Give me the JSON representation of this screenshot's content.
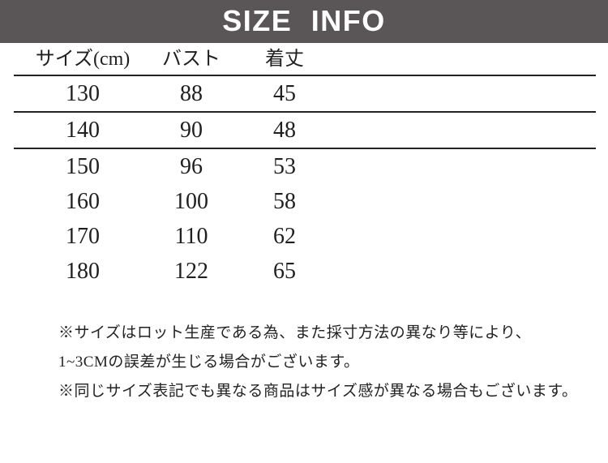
{
  "header": {
    "title": "SIZE INFO",
    "bg_color": "#5a5556",
    "text_color": "#ffffff"
  },
  "table": {
    "columns": [
      "サイズ(cm)",
      "バスト",
      "着丈"
    ],
    "rows": [
      {
        "size": "130",
        "bust": "88",
        "length": "45"
      },
      {
        "size": "140",
        "bust": "90",
        "length": "48"
      },
      {
        "size": "150",
        "bust": "96",
        "length": "53"
      },
      {
        "size": "160",
        "bust": "100",
        "length": "58"
      },
      {
        "size": "170",
        "bust": "110",
        "length": "62"
      },
      {
        "size": "180",
        "bust": "122",
        "length": "65"
      }
    ],
    "rule_color": "#222222"
  },
  "notes": {
    "line1": "※サイズはロット生産である為、また採寸方法の異なり等により、",
    "line2": "1~3CMの誤差が生じる場合がございます。",
    "line3": "※同じサイズ表記でも異なる商品はサイズ感が異なる場合もございます。"
  }
}
